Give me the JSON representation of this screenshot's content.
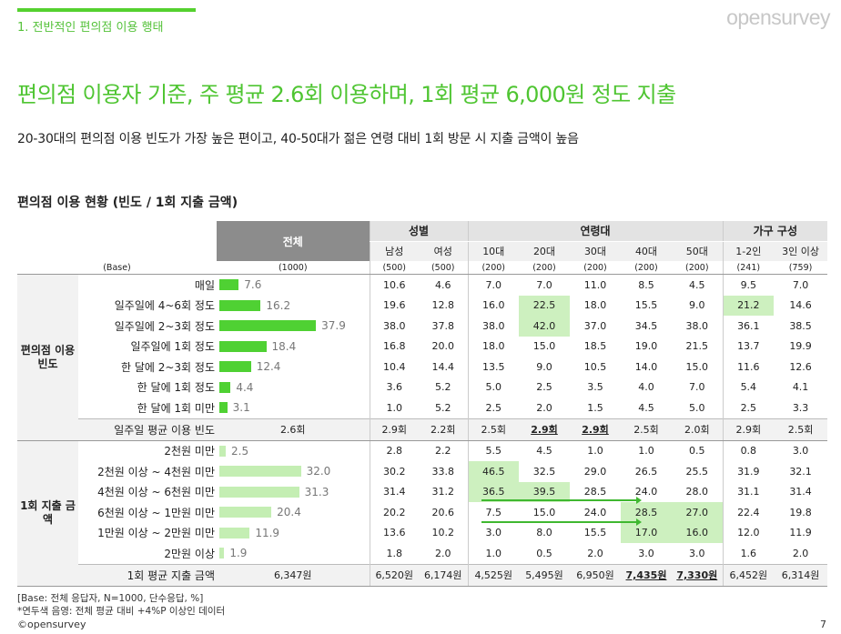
{
  "section_title": "1. 전반적인 편의점 이용 행태",
  "logo": "opensurvey",
  "headline": "편의점 이용자 기준, 주 평균 2.6회 이용하며, 1회 평균 6,000원 정도 지출",
  "subheadline": "20-30대의 편의점 이용 빈도가 가장 높은 편이고, 40-50대가 젊은 연령 대비 1회 방문 시 지출 금액이 높음",
  "table_title": "편의점 이용 현황 (빈도 / 1회 지출 금액)",
  "header": {
    "total": "전체",
    "groups": [
      "성별",
      "연령대",
      "가구 구성"
    ],
    "subs": [
      "남성",
      "여성",
      "10대",
      "20대",
      "30대",
      "40대",
      "50대",
      "1-2인",
      "3인 이상"
    ],
    "base_label": "(Base)",
    "bases": [
      "(1000)",
      "(500)",
      "(500)",
      "(200)",
      "(200)",
      "(200)",
      "(200)",
      "(200)",
      "(241)",
      "(759)"
    ]
  },
  "section1": {
    "name": "편의점 이용 빈도",
    "rows": [
      {
        "label": "매일",
        "total": "7.6",
        "cells": [
          "10.6",
          "4.6",
          "7.0",
          "7.0",
          "11.0",
          "8.5",
          "4.5",
          "9.5",
          "7.0"
        ]
      },
      {
        "label": "일주일에 4~6회 정도",
        "total": "16.2",
        "cells": [
          "19.6",
          "12.8",
          "16.0",
          "22.5",
          "18.0",
          "15.5",
          "9.0",
          "21.2",
          "14.6"
        ]
      },
      {
        "label": "일주일에 2~3회 정도",
        "total": "37.9",
        "cells": [
          "38.0",
          "37.8",
          "38.0",
          "42.0",
          "37.0",
          "34.5",
          "38.0",
          "36.1",
          "38.5"
        ]
      },
      {
        "label": "일주일에 1회 정도",
        "total": "18.4",
        "cells": [
          "16.8",
          "20.0",
          "18.0",
          "15.0",
          "18.5",
          "19.0",
          "21.5",
          "13.7",
          "19.9"
        ]
      },
      {
        "label": "한 달에 2~3회 정도",
        "total": "12.4",
        "cells": [
          "10.4",
          "14.4",
          "13.5",
          "9.0",
          "10.5",
          "14.0",
          "15.0",
          "11.6",
          "12.6"
        ]
      },
      {
        "label": "한 달에 1회 정도",
        "total": "4.4",
        "cells": [
          "3.6",
          "5.2",
          "5.0",
          "2.5",
          "3.5",
          "4.0",
          "7.0",
          "5.4",
          "4.1"
        ]
      },
      {
        "label": "한 달에 1회 미만",
        "total": "3.1",
        "cells": [
          "1.0",
          "5.2",
          "2.5",
          "2.0",
          "1.5",
          "4.5",
          "5.0",
          "2.5",
          "3.3"
        ]
      }
    ],
    "avg": {
      "label": "일주일 평균 이용 빈도",
      "total": "2.6회",
      "cells": [
        "2.9회",
        "2.2회",
        "2.5회",
        "2.9회",
        "2.9회",
        "2.5회",
        "2.0회",
        "2.9회",
        "2.5회"
      ]
    }
  },
  "section2": {
    "name": "1회 지출 금액",
    "rows": [
      {
        "label": "2천원 미만",
        "total": "2.5",
        "cells": [
          "2.8",
          "2.2",
          "5.5",
          "4.5",
          "1.0",
          "1.0",
          "0.5",
          "0.8",
          "3.0"
        ]
      },
      {
        "label": "2천원 이상 ~ 4천원 미만",
        "total": "32.0",
        "cells": [
          "30.2",
          "33.8",
          "46.5",
          "32.5",
          "29.0",
          "26.5",
          "25.5",
          "31.9",
          "32.1"
        ]
      },
      {
        "label": "4천원 이상 ~ 6천원 미만",
        "total": "31.3",
        "cells": [
          "31.4",
          "31.2",
          "36.5",
          "39.5",
          "28.5",
          "24.0",
          "28.0",
          "31.1",
          "31.4"
        ]
      },
      {
        "label": "6천원 이상 ~ 1만원 미만",
        "total": "20.4",
        "cells": [
          "20.2",
          "20.6",
          "7.5",
          "15.0",
          "24.0",
          "28.5",
          "27.0",
          "22.4",
          "19.8"
        ]
      },
      {
        "label": "1만원 이상 ~ 2만원 미만",
        "total": "11.9",
        "cells": [
          "13.6",
          "10.2",
          "3.0",
          "8.0",
          "15.5",
          "17.0",
          "16.0",
          "12.0",
          "11.9"
        ]
      },
      {
        "label": "2만원 이상",
        "total": "1.9",
        "cells": [
          "1.8",
          "2.0",
          "1.0",
          "0.5",
          "2.0",
          "3.0",
          "3.0",
          "1.6",
          "2.0"
        ]
      }
    ],
    "avg": {
      "label": "1회 평균 지출 금액",
      "total": "6,347원",
      "cells": [
        "6,520원",
        "6,174원",
        "4,525원",
        "5,495원",
        "6,950원",
        "7,435원",
        "7,330원",
        "6,452원",
        "6,314원"
      ]
    }
  },
  "footnote1": "[Base: 전체 응답자, N=1000, 단수응답, %]",
  "footnote2": "*연두색 음영: 전체 평균 대비 +4%P 이상인 데이터",
  "footer_logo": "©opensurvey",
  "page_number": "7",
  "highlight_color": "#cdf0bf",
  "bar_color_freq": "#4fd133",
  "bar_color_spend": "#c4eeb3",
  "accent_color": "#55d12f"
}
